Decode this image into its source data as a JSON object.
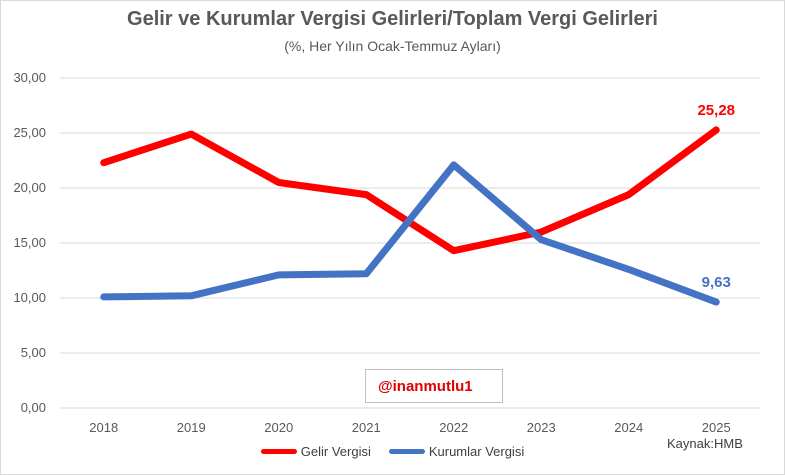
{
  "chart_data": {
    "type": "line",
    "title": "Gelir ve Kurumlar Vergisi Gelirleri/Toplam Vergi Gelirleri",
    "subtitle": "(%, Her Yılın Ocak-Temmuz Ayları)",
    "categories": [
      "2018",
      "2019",
      "2020",
      "2021",
      "2022",
      "2023",
      "2024",
      "2025"
    ],
    "series": [
      {
        "name": "Gelir Vergisi",
        "color": "#ff0000",
        "values": [
          22.3,
          24.9,
          20.5,
          19.4,
          14.3,
          16.0,
          19.4,
          25.28
        ],
        "last_label": "25,28"
      },
      {
        "name": "Kurumlar Vergisi",
        "color": "#4472c4",
        "values": [
          10.1,
          10.2,
          12.1,
          12.2,
          22.1,
          15.3,
          12.6,
          9.63
        ],
        "last_label": "9,63"
      }
    ],
    "ylim": [
      0,
      30
    ],
    "yticks": [
      "0,00",
      "5,00",
      "10,00",
      "15,00",
      "20,00",
      "25,00",
      "30,00"
    ],
    "grid": true,
    "legend_position": "bottom"
  },
  "watermark": "@inanmutlu1",
  "source": "Kaynak:HMB"
}
